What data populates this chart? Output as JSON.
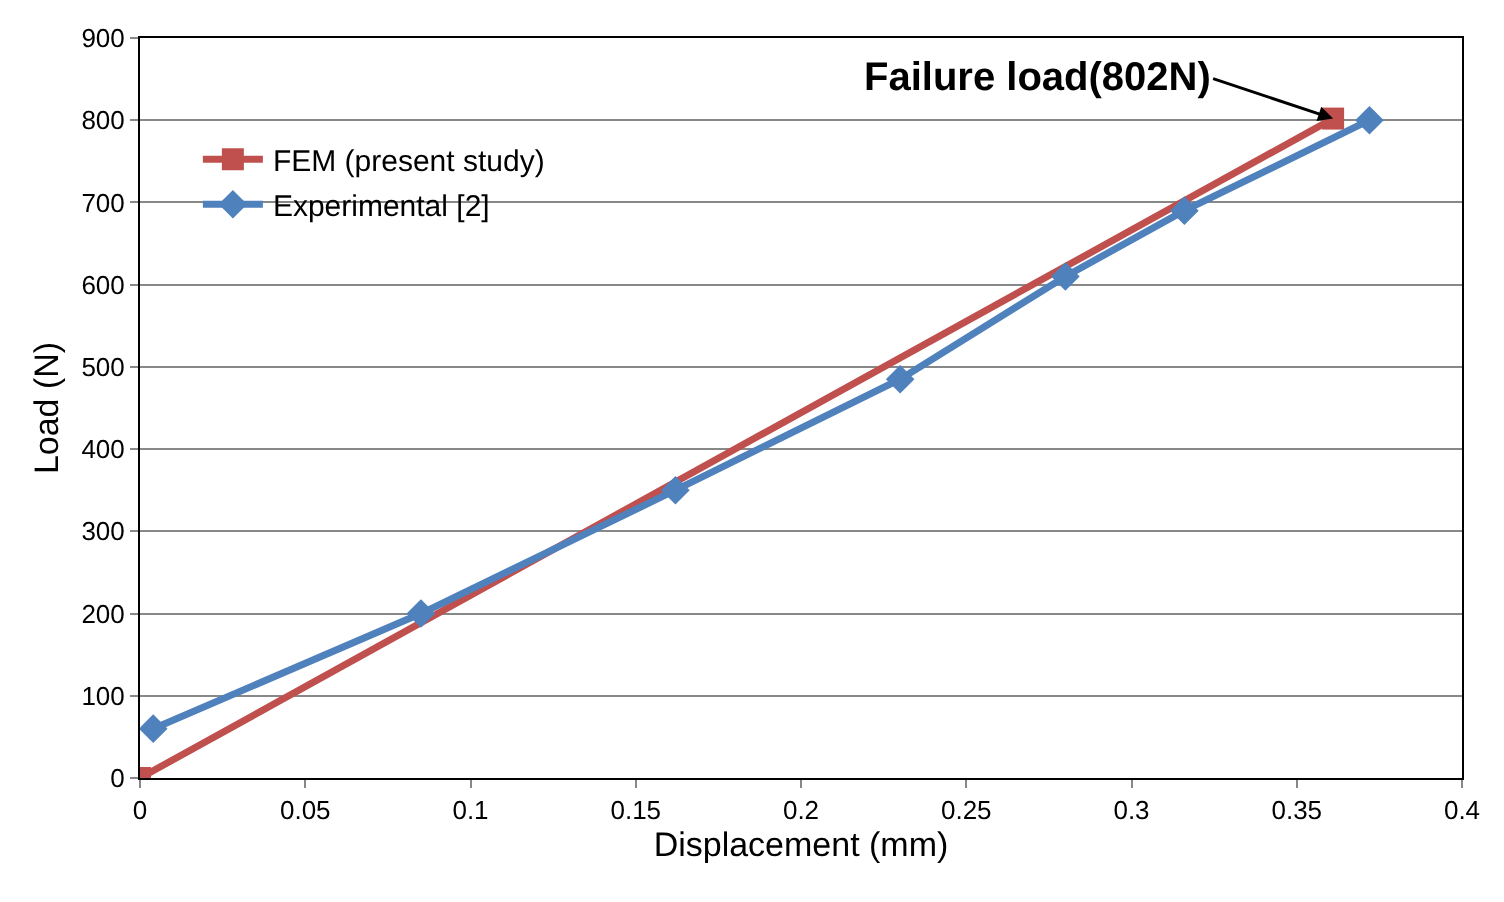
{
  "chart_data": {
    "type": "line",
    "xlabel": "Displacement (mm)",
    "ylabel": "Load (N)",
    "series": [
      {
        "name": "FEM (present study)",
        "color": "#c0504d",
        "marker": "square",
        "x": [
          0,
          0.361
        ],
        "values": [
          0,
          802
        ]
      },
      {
        "name": "Experimental [2]",
        "color": "#4f81bd",
        "marker": "diamond",
        "x": [
          0.004,
          0.085,
          0.162,
          0.23,
          0.28,
          0.316,
          0.372
        ],
        "values": [
          60,
          200,
          350,
          485,
          610,
          690,
          800
        ]
      }
    ],
    "xlim": [
      0,
      0.4
    ],
    "xticks": [
      0,
      0.05,
      0.1,
      0.15,
      0.2,
      0.25,
      0.3,
      0.35,
      0.4
    ],
    "ylim": [
      0,
      900
    ],
    "yticks": [
      0,
      100,
      200,
      300,
      400,
      500,
      600,
      700,
      800,
      900
    ],
    "grid": "y",
    "legend": "top left",
    "annotations": [
      {
        "text": "Failure load(802N)",
        "x": 0.361,
        "y": 802
      }
    ]
  }
}
